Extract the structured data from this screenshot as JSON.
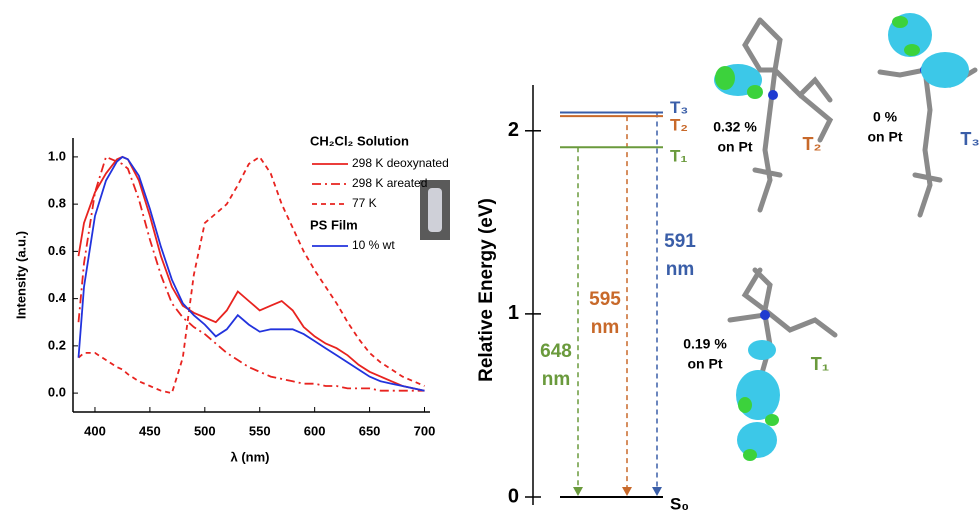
{
  "chart_data": [
    {
      "type": "line",
      "x_label": "λ (nm)",
      "y_label": "Intensity (a.u.)",
      "x": [
        385,
        390,
        400,
        410,
        420,
        425,
        430,
        440,
        450,
        460,
        470,
        480,
        490,
        500,
        510,
        520,
        530,
        540,
        550,
        560,
        570,
        580,
        590,
        600,
        610,
        620,
        630,
        640,
        650,
        660,
        670,
        680,
        690,
        700
      ],
      "legend_titles": [
        "CH₂Cl₂ Solution",
        "PS Film"
      ],
      "series": [
        {
          "name": "298 K deoxynated",
          "color": "#e8231f",
          "dash": "solid",
          "values": [
            0.58,
            0.72,
            0.85,
            0.93,
            0.99,
            1.0,
            0.99,
            0.9,
            0.75,
            0.58,
            0.45,
            0.37,
            0.34,
            0.32,
            0.3,
            0.35,
            0.43,
            0.39,
            0.35,
            0.37,
            0.39,
            0.35,
            0.28,
            0.24,
            0.21,
            0.19,
            0.16,
            0.12,
            0.09,
            0.07,
            0.05,
            0.03,
            0.02,
            0.01
          ]
        },
        {
          "name": "298 K areated",
          "color": "#e8231f",
          "dash": "dashdot",
          "values": [
            0.3,
            0.55,
            0.85,
            1.0,
            0.98,
            0.97,
            0.95,
            0.82,
            0.65,
            0.5,
            0.38,
            0.32,
            0.28,
            0.25,
            0.21,
            0.17,
            0.14,
            0.11,
            0.09,
            0.07,
            0.06,
            0.05,
            0.04,
            0.04,
            0.03,
            0.03,
            0.02,
            0.02,
            0.02,
            0.01,
            0.01,
            0.01,
            0.01,
            0.01
          ]
        },
        {
          "name": "77 K",
          "color": "#e8231f",
          "dash": "dash",
          "values": [
            0.15,
            0.17,
            0.17,
            0.14,
            0.11,
            0.1,
            0.08,
            0.05,
            0.03,
            0.01,
            0.0,
            0.15,
            0.5,
            0.72,
            0.76,
            0.8,
            0.88,
            0.97,
            1.0,
            0.93,
            0.8,
            0.7,
            0.6,
            0.52,
            0.45,
            0.38,
            0.3,
            0.23,
            0.17,
            0.13,
            0.1,
            0.07,
            0.05,
            0.03
          ]
        },
        {
          "name": "10 % wt",
          "color": "#2233dd",
          "dash": "solid",
          "values": [
            0.15,
            0.45,
            0.75,
            0.9,
            0.98,
            1.0,
            0.99,
            0.92,
            0.78,
            0.62,
            0.48,
            0.38,
            0.33,
            0.29,
            0.24,
            0.27,
            0.33,
            0.29,
            0.26,
            0.27,
            0.27,
            0.27,
            0.25,
            0.22,
            0.19,
            0.16,
            0.13,
            0.1,
            0.07,
            0.05,
            0.04,
            0.03,
            0.02,
            0.01
          ]
        }
      ],
      "xlim": [
        380,
        705
      ],
      "xticks": [
        400,
        450,
        500,
        550,
        600,
        650,
        700
      ],
      "ylim": [
        -0.08,
        1.08
      ],
      "yticks": [
        {
          "value": 0,
          "label": "0.0"
        },
        0.2,
        0.4,
        0.6,
        0.8,
        {
          "value": 1,
          "label": "1.0"
        }
      ]
    },
    {
      "type": "energy-level",
      "y_label": "Relative Energy (eV)",
      "ylim": [
        0,
        2.25
      ],
      "yticks": [
        0,
        1,
        2
      ],
      "levels": [
        {
          "name": "T₃",
          "energy": 2.1,
          "color": "#3a5ea8",
          "transition_label": [
            "591",
            "nm"
          ]
        },
        {
          "name": "T₂",
          "energy": 2.08,
          "color": "#c8692a",
          "transition_label": [
            "595",
            "nm"
          ]
        },
        {
          "name": "T₁",
          "energy": 1.91,
          "color": "#6a9a3c",
          "transition_label": [
            "648",
            "nm"
          ]
        },
        {
          "name": "S₀",
          "energy": 0,
          "color": "#000000"
        }
      ],
      "annotations": [
        {
          "lines": [
            "0.32 %",
            "on Pt"
          ],
          "state": "T₂",
          "color": "#c8692a"
        },
        {
          "lines": [
            "0 %",
            "on Pt"
          ],
          "state": "T₃",
          "color": "#3a5ea8"
        },
        {
          "lines": [
            "0.19 %",
            "on Pt"
          ],
          "state": "T₁",
          "color": "#6a9a3c"
        }
      ]
    }
  ]
}
